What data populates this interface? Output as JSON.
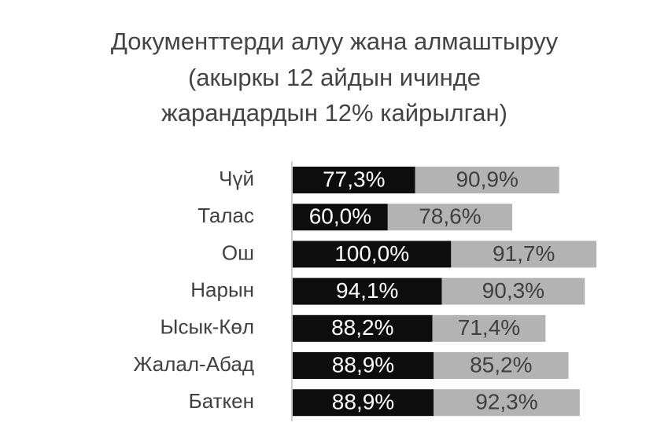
{
  "chart_data": {
    "type": "stacked-bar-horizontal",
    "title": [
      "Документтерди алуу жана алмаштыруу",
      "(акыркы 12 айдын ичинде",
      "жарандардын 12% кайрылган)"
    ],
    "categories": [
      "Чүй",
      "Талас",
      "Ош",
      "Нарын",
      "Ысык-Көл",
      "Жалал-Абад",
      "Баткен"
    ],
    "series": [
      {
        "color": "#0d0d0d",
        "label_color": "#ffffff",
        "values": [
          77.3,
          60.0,
          100.0,
          94.1,
          88.2,
          88.9,
          88.9
        ],
        "value_labels": [
          "77,3%",
          "60,0%",
          "100,0%",
          "94,1%",
          "88,2%",
          "88,9%",
          "88,9%"
        ]
      },
      {
        "color": "#b3b3b3",
        "label_color": "#404040",
        "values": [
          90.9,
          78.6,
          91.7,
          90.3,
          71.4,
          85.2,
          92.3
        ],
        "value_labels": [
          "90,9%",
          "78,6%",
          "91,7%",
          "90,3%",
          "71,4%",
          "85,2%",
          "92,3%"
        ]
      }
    ]
  }
}
